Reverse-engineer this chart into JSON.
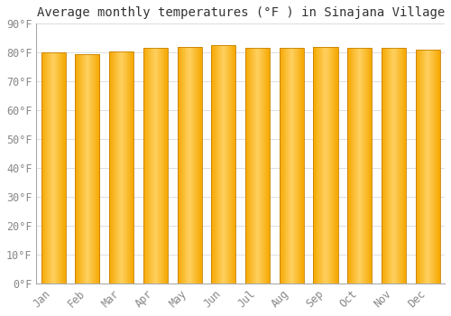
{
  "title": "Average monthly temperatures (°F ) in Sinajana Village",
  "months": [
    "Jan",
    "Feb",
    "Mar",
    "Apr",
    "May",
    "Jun",
    "Jul",
    "Aug",
    "Sep",
    "Oct",
    "Nov",
    "Dec"
  ],
  "values": [
    80,
    79.5,
    80.5,
    81.5,
    82,
    82.5,
    81.5,
    81.5,
    82,
    81.5,
    81.5,
    81
  ],
  "ylim": [
    0,
    90
  ],
  "yticks": [
    0,
    10,
    20,
    30,
    40,
    50,
    60,
    70,
    80,
    90
  ],
  "ytick_labels": [
    "0°F",
    "10°F",
    "20°F",
    "30°F",
    "40°F",
    "50°F",
    "60°F",
    "70°F",
    "80°F",
    "90°F"
  ],
  "bar_color_center": "#FFD060",
  "bar_color_edge": "#F5A800",
  "bar_edge_color": "#C88000",
  "background_color": "#FFFFFF",
  "grid_color": "#DDDDDD",
  "title_fontsize": 10,
  "tick_fontsize": 8.5,
  "font_family": "monospace"
}
